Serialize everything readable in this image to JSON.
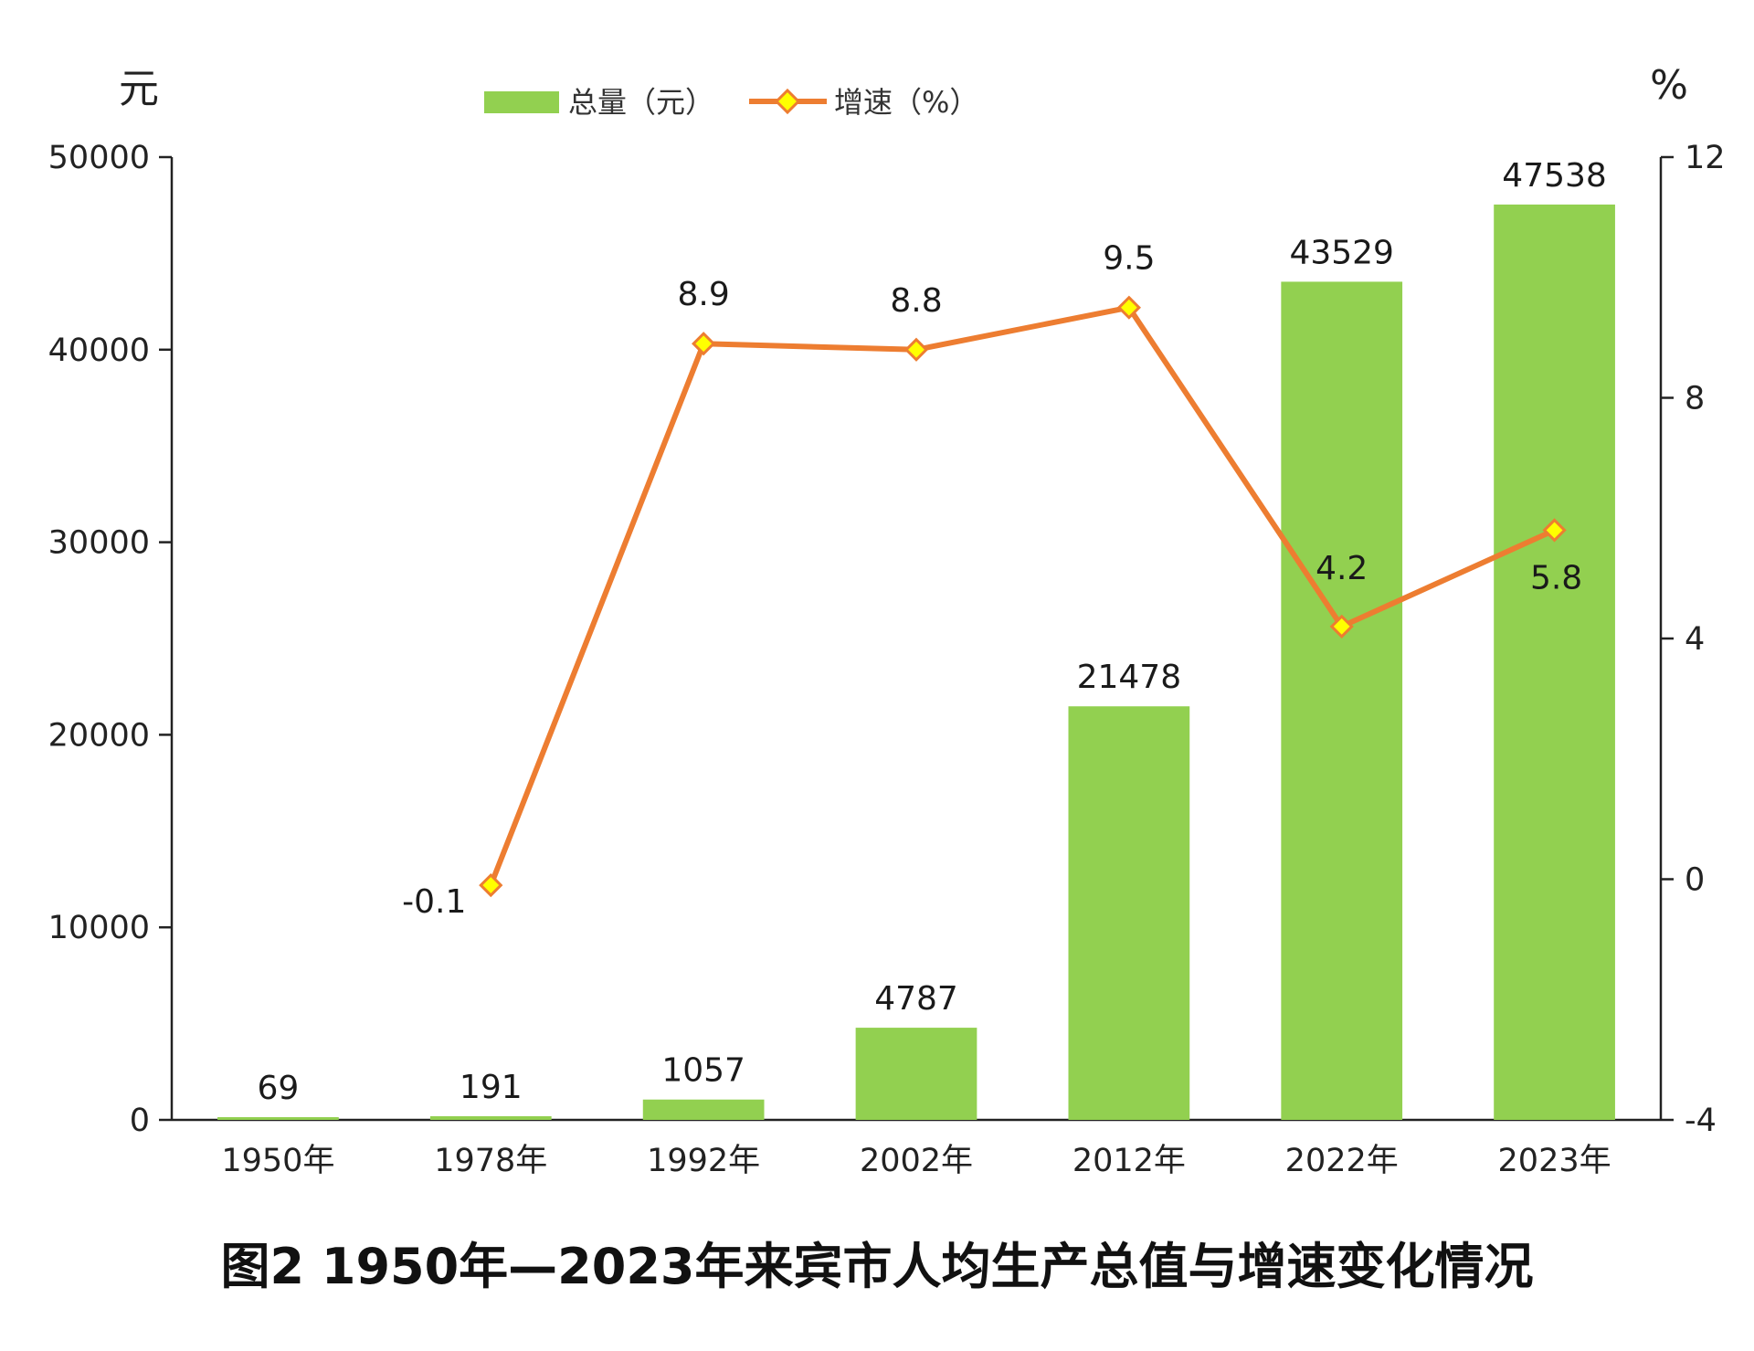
{
  "chart_data": {
    "type": "bar+line",
    "title": "图2 1950年—2023年来宾市人均生产总值与增速变化情况",
    "categories": [
      "1950年",
      "1978年",
      "1992年",
      "2002年",
      "2012年",
      "2022年",
      "2023年"
    ],
    "series": [
      {
        "name": "总量（元）",
        "type": "bar",
        "axis": "left",
        "color": "#92d050",
        "values": [
          69,
          191,
          1057,
          4787,
          21478,
          43529,
          47538
        ],
        "labels": [
          "69",
          "191",
          "1057",
          "4787",
          "21478",
          "43529",
          "47538"
        ]
      },
      {
        "name": "增速（%）",
        "type": "line",
        "axis": "right",
        "color": "#ed7d31",
        "marker_color": "#ffff00",
        "values": [
          null,
          -0.1,
          8.9,
          8.8,
          9.5,
          4.2,
          5.8
        ],
        "labels": [
          "",
          "-0.1",
          "8.9",
          "8.8",
          "9.5",
          "4.2",
          "5.8"
        ]
      }
    ],
    "left_axis": {
      "unit": "元",
      "ylim": [
        0,
        50000
      ],
      "ticks": [
        "0",
        "10000",
        "20000",
        "30000",
        "40000",
        "50000"
      ]
    },
    "right_axis": {
      "unit": "%",
      "ylim": [
        -4,
        12
      ],
      "ticks": [
        "-4",
        "0",
        "4",
        "8",
        "12"
      ]
    },
    "legend": {
      "placement": "top-center",
      "items": [
        "总量（元）",
        "增速（%）"
      ]
    },
    "grid": false
  }
}
